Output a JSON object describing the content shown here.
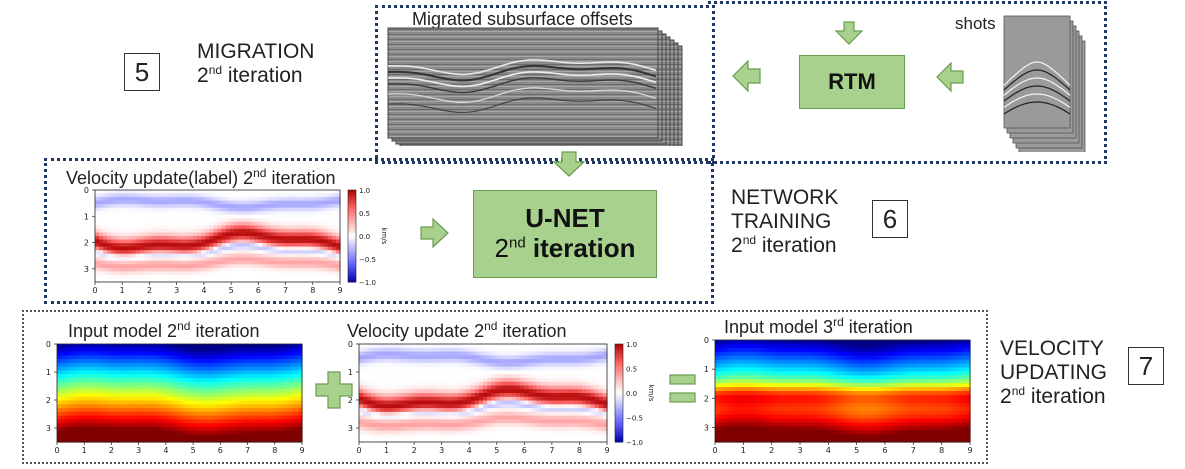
{
  "migration": {
    "title": "MIGRATION",
    "iter_num": "2",
    "iter_suffix": "nd",
    "iter_word": "iteration",
    "step": "5"
  },
  "offsets_label": "Migrated subsurface offsets",
  "shots_label": "shots",
  "rtm_label": "RTM",
  "unet": {
    "line1": "U-NET",
    "num": "2",
    "suffix": "nd",
    "word": "iteration"
  },
  "network_training": {
    "line1": "NETWORK",
    "line2": "TRAINING",
    "num": "2",
    "suffix": "nd",
    "word": "iteration",
    "step": "6"
  },
  "velocity_updating": {
    "line1": "VELOCITY",
    "line2": "UPDATING",
    "num": "2",
    "suffix": "nd",
    "word": "iteration",
    "step": "7"
  },
  "plots": {
    "label_update": {
      "title_pre": "Velocity update(label) 2",
      "title_sup": "nd",
      "title_post": " iteration"
    },
    "input2": {
      "title_pre": "Input model 2",
      "title_sup": "nd",
      "title_post": " iteration"
    },
    "update2": {
      "title_pre": "Velocity update 2",
      "title_sup": "nd",
      "title_post": " iteration"
    },
    "input3": {
      "title_pre": "Input model 3",
      "title_sup": "rd",
      "title_post": " iteration"
    }
  },
  "axes": {
    "x_ticks": [
      "0",
      "1",
      "2",
      "3",
      "4",
      "5",
      "6",
      "7",
      "8",
      "9"
    ],
    "y_ticks": [
      "0",
      "1",
      "2",
      "3"
    ],
    "colorbar_ticks": [
      "1.0",
      "0.5",
      "0.0",
      "−0.5",
      "−1.0"
    ],
    "colorbar_unit": "km/s"
  },
  "colors": {
    "green_box": "#a9d18e",
    "arrow_green": "#a9d18e",
    "navy_dots": "#1f3864"
  }
}
